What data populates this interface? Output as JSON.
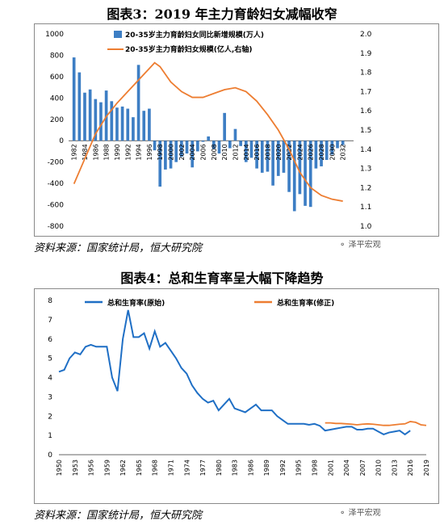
{
  "watermark": "泽平宏观",
  "chart_data": [
    {
      "type": "bar+line",
      "title": "图表3：2019 年主力育龄妇女减幅收窄",
      "source": "资料来源：国家统计局，恒大研究院",
      "x_ticks": [
        1982,
        1984,
        1986,
        1988,
        1990,
        1992,
        1994,
        1996,
        1998,
        2000,
        2002,
        2004,
        2006,
        2008,
        2010,
        2012,
        2014,
        2016,
        2018,
        2020,
        2022,
        2024,
        2026,
        2028,
        2030,
        2032
      ],
      "y_left_ticks": [
        1000,
        800,
        600,
        400,
        200,
        0,
        -200,
        -400,
        -600,
        -800
      ],
      "y_right_ticks": [
        "2.0",
        "1.9",
        "1.8",
        "1.7",
        "1.6",
        "1.5",
        "1.4",
        "1.3",
        "1.2",
        "1.1",
        "1.0"
      ],
      "y_left_range": [
        -800,
        1000
      ],
      "y_right_range": [
        1.0,
        2.0
      ],
      "x_range": [
        1981,
        2034
      ],
      "legend": [
        "20-35岁主力育龄妇女同比新增规模(万人)",
        "20-35岁主力育龄妇女规模(亿人,右轴)"
      ],
      "colors": {
        "bar": "#3d7ec4",
        "line": "#ed7d31"
      },
      "bars": {
        "x": [
          1982,
          1983,
          1984,
          1985,
          1986,
          1987,
          1988,
          1989,
          1990,
          1991,
          1992,
          1993,
          1994,
          1995,
          1996,
          1997,
          1998,
          1999,
          2000,
          2001,
          2002,
          2003,
          2004,
          2005,
          2006,
          2007,
          2008,
          2009,
          2010,
          2011,
          2012,
          2013,
          2014,
          2015,
          2016,
          2017,
          2018,
          2019,
          2020,
          2021,
          2022,
          2023,
          2024,
          2025,
          2026,
          2027,
          2028,
          2029,
          2030,
          2031,
          2032
        ],
        "values": [
          780,
          640,
          450,
          480,
          390,
          360,
          470,
          370,
          310,
          320,
          300,
          220,
          710,
          280,
          300,
          -90,
          -430,
          -270,
          -260,
          -200,
          -150,
          -120,
          -250,
          -100,
          -10,
          40,
          -80,
          -120,
          260,
          -70,
          110,
          -50,
          -200,
          -160,
          -260,
          -300,
          -290,
          -420,
          -330,
          -300,
          -480,
          -660,
          -500,
          -610,
          -620,
          -260,
          -240,
          -180,
          -130,
          -70,
          -40
        ]
      },
      "line": {
        "x": [
          1982,
          1984,
          1986,
          1988,
          1990,
          1992,
          1994,
          1996,
          1997,
          1998,
          2000,
          2002,
          2004,
          2006,
          2008,
          2010,
          2012,
          2014,
          2016,
          2018,
          2020,
          2022,
          2024,
          2026,
          2028,
          2030,
          2032
        ],
        "values": [
          1.22,
          1.35,
          1.48,
          1.57,
          1.64,
          1.7,
          1.76,
          1.82,
          1.85,
          1.83,
          1.75,
          1.7,
          1.67,
          1.67,
          1.69,
          1.71,
          1.72,
          1.7,
          1.65,
          1.58,
          1.5,
          1.4,
          1.28,
          1.2,
          1.16,
          1.14,
          1.13
        ]
      }
    },
    {
      "type": "line",
      "title": "图表4：总和生育率呈大幅下降趋势",
      "source": "资料来源：国家统计局，恒大研究院",
      "x_ticks": [
        1950,
        1953,
        1956,
        1959,
        1962,
        1965,
        1968,
        1971,
        1974,
        1977,
        1980,
        1983,
        1986,
        1989,
        1992,
        1995,
        1998,
        2001,
        2004,
        2007,
        2010,
        2013,
        2016,
        2019
      ],
      "y_ticks": [
        8,
        7,
        6,
        5,
        4,
        3,
        2,
        1,
        0
      ],
      "y_range": [
        0,
        8
      ],
      "x_range": [
        1950,
        2019
      ],
      "series": [
        {
          "name": "总和生育率(原始)",
          "color": "#1f6fc5",
          "x": [
            1950,
            1951,
            1952,
            1953,
            1954,
            1955,
            1956,
            1957,
            1958,
            1959,
            1960,
            1961,
            1962,
            1963,
            1964,
            1965,
            1966,
            1967,
            1968,
            1969,
            1970,
            1971,
            1972,
            1973,
            1974,
            1975,
            1976,
            1977,
            1978,
            1979,
            1980,
            1981,
            1982,
            1983,
            1984,
            1985,
            1986,
            1987,
            1988,
            1989,
            1990,
            1991,
            1992,
            1993,
            1994,
            1995,
            1996,
            1997,
            1998,
            1999,
            2000,
            2001,
            2002,
            2003,
            2004,
            2005,
            2006,
            2007,
            2008,
            2009,
            2010,
            2011,
            2012,
            2013,
            2014,
            2015,
            2016
          ],
          "values": [
            4.3,
            4.4,
            5.0,
            5.3,
            5.2,
            5.6,
            5.7,
            5.6,
            5.6,
            5.6,
            4.0,
            3.3,
            6.0,
            7.5,
            6.1,
            6.1,
            6.3,
            5.5,
            6.4,
            5.6,
            5.8,
            5.4,
            5.0,
            4.5,
            4.2,
            3.6,
            3.2,
            2.9,
            2.7,
            2.8,
            2.3,
            2.6,
            2.9,
            2.4,
            2.3,
            2.2,
            2.4,
            2.6,
            2.3,
            2.3,
            2.3,
            2.0,
            1.8,
            1.6,
            1.6,
            1.6,
            1.6,
            1.55,
            1.6,
            1.5,
            1.25,
            1.3,
            1.35,
            1.4,
            1.45,
            1.45,
            1.3,
            1.3,
            1.35,
            1.35,
            1.2,
            1.05,
            1.15,
            1.2,
            1.25,
            1.05,
            1.25
          ]
        },
        {
          "name": "总和生育率(修正)",
          "color": "#ed7d31",
          "x": [
            2000,
            2001,
            2002,
            2003,
            2004,
            2005,
            2006,
            2007,
            2008,
            2009,
            2010,
            2011,
            2012,
            2013,
            2014,
            2015,
            2016,
            2017,
            2018,
            2019
          ],
          "values": [
            1.65,
            1.65,
            1.62,
            1.62,
            1.6,
            1.58,
            1.55,
            1.58,
            1.6,
            1.58,
            1.55,
            1.52,
            1.52,
            1.55,
            1.58,
            1.6,
            1.72,
            1.68,
            1.55,
            1.52
          ]
        }
      ]
    }
  ]
}
